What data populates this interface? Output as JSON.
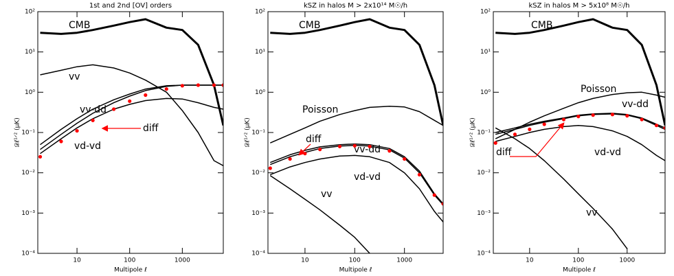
{
  "chart_data": [
    {
      "type": "line",
      "title": "1st and 2nd [OV] orders",
      "xlabel": "Multipole ℓ",
      "ylabel": "𝒟ℓ¹ᐟ² (μK)",
      "xscale": "log",
      "yscale": "log",
      "xlim": [
        1.8,
        6000
      ],
      "ylim": [
        0.0001,
        100
      ],
      "xticks": [
        10,
        100,
        1000
      ],
      "yticks": [
        {
          "value": 0.0001,
          "label": "10⁻⁴"
        },
        {
          "value": 0.001,
          "label": "10⁻³"
        },
        {
          "value": 0.01,
          "label": "10⁻²"
        },
        {
          "value": 0.1,
          "label": "10⁻¹"
        },
        {
          "value": 1,
          "label": "10⁰"
        },
        {
          "value": 10,
          "label": "10¹"
        },
        {
          "value": 100,
          "label": "10²"
        }
      ],
      "x": [
        2,
        5,
        10,
        20,
        50,
        100,
        200,
        500,
        1000,
        2000,
        4000,
        6000
      ],
      "series": [
        {
          "name": "CMB",
          "color": "#000000",
          "width": 3,
          "values": [
            30,
            28,
            30,
            35,
            45,
            55,
            65,
            40,
            35,
            15,
            1.5,
            0.15
          ]
        },
        {
          "name": "vv",
          "color": "#000000",
          "width": 1.5,
          "values": [
            2.7,
            3.5,
            4.3,
            4.8,
            4,
            3,
            2,
            1,
            0.35,
            0.1,
            0.02,
            0.015
          ]
        },
        {
          "color": "#000000",
          "width": 1.5,
          "values": [
            0.05,
            0.12,
            0.22,
            0.38,
            0.65,
            0.9,
            1.2,
            1.45,
            1.5,
            1.5,
            1.5,
            1.5
          ]
        },
        {
          "name": "vv-dd",
          "color": "#000000",
          "width": 1.5,
          "values": [
            0.038,
            0.09,
            0.17,
            0.3,
            0.55,
            0.8,
            1.1,
            1.4,
            1.5,
            1.5,
            1.5,
            1.5
          ]
        },
        {
          "name": "vd-vd",
          "color": "#000000",
          "width": 1.5,
          "values": [
            0.03,
            0.07,
            0.13,
            0.22,
            0.38,
            0.5,
            0.62,
            0.7,
            0.68,
            0.55,
            0.42,
            0.38
          ]
        },
        {
          "name": "diff",
          "color": "#ff0000",
          "style": "dots",
          "values": [
            0.025,
            0.06,
            0.11,
            0.2,
            0.38,
            0.6,
            0.85,
            1.2,
            1.45,
            1.5,
            1.5,
            1.5
          ]
        }
      ]
    },
    {
      "type": "line",
      "title": "kSZ in halos M > 2x10¹⁴ M☉/h",
      "xlabel": "Multipole ℓ",
      "ylabel": "𝒟ℓ¹ᐟ² (μK)",
      "xscale": "log",
      "yscale": "log",
      "xlim": [
        1.8,
        6000
      ],
      "ylim": [
        0.0001,
        100
      ],
      "xticks": [
        10,
        100,
        1000
      ],
      "yticks": [
        {
          "value": 0.0001,
          "label": "10⁻⁴"
        },
        {
          "value": 0.001,
          "label": "10⁻³"
        },
        {
          "value": 0.01,
          "label": "10⁻²"
        },
        {
          "value": 0.1,
          "label": "10⁻¹"
        },
        {
          "value": 1,
          "label": "10⁰"
        },
        {
          "value": 10,
          "label": "10¹"
        },
        {
          "value": 100,
          "label": "10²"
        }
      ],
      "x": [
        2,
        5,
        10,
        20,
        50,
        100,
        200,
        500,
        1000,
        2000,
        4000,
        6000
      ],
      "series": [
        {
          "name": "CMB",
          "color": "#000000",
          "width": 3,
          "values": [
            30,
            28,
            30,
            35,
            45,
            55,
            65,
            40,
            35,
            15,
            1.5,
            0.15
          ]
        },
        {
          "name": "Poisson",
          "color": "#000000",
          "width": 1.5,
          "values": [
            0.055,
            0.09,
            0.13,
            0.19,
            0.28,
            0.35,
            0.42,
            0.45,
            0.43,
            0.33,
            0.2,
            0.15
          ]
        },
        {
          "name": "vv-dd",
          "color": "#000000",
          "width": 1.5,
          "values": [
            0.018,
            0.028,
            0.036,
            0.044,
            0.05,
            0.052,
            0.05,
            0.04,
            0.025,
            0.011,
            0.003,
            0.0017
          ]
        },
        {
          "color": "#000000",
          "width": 1.5,
          "values": [
            0.016,
            0.025,
            0.032,
            0.04,
            0.046,
            0.048,
            0.046,
            0.037,
            0.023,
            0.01,
            0.0028,
            0.0016
          ]
        },
        {
          "name": "vd-vd",
          "color": "#000000",
          "width": 1.5,
          "values": [
            0.009,
            0.014,
            0.018,
            0.022,
            0.026,
            0.027,
            0.025,
            0.018,
            0.01,
            0.004,
            0.0011,
            0.0006
          ]
        },
        {
          "name": "vv",
          "color": "#000000",
          "width": 1.5,
          "values": [
            0.0085,
            0.004,
            0.0022,
            0.0012,
            0.0005,
            0.00025,
            0.0001,
            null,
            null,
            null,
            null,
            null
          ]
        },
        {
          "name": "diff",
          "color": "#ff0000",
          "style": "dots",
          "values": [
            0.013,
            0.022,
            0.03,
            0.038,
            0.045,
            0.047,
            0.045,
            0.035,
            0.022,
            0.009,
            0.0028,
            0.0017
          ]
        }
      ]
    },
    {
      "type": "line",
      "title": "kSZ in halos M > 5x10⁸ M☉/h",
      "xlabel": "Multipole ℓ",
      "ylabel": "𝒟ℓ¹ᐟ² (μK)",
      "xscale": "log",
      "yscale": "log",
      "xlim": [
        1.8,
        6000
      ],
      "ylim": [
        0.0001,
        100
      ],
      "xticks": [
        10,
        100,
        1000
      ],
      "yticks": [
        {
          "value": 0.0001,
          "label": "10⁻⁴"
        },
        {
          "value": 0.001,
          "label": "10⁻³"
        },
        {
          "value": 0.01,
          "label": "10⁻²"
        },
        {
          "value": 0.1,
          "label": "10⁻¹"
        },
        {
          "value": 1,
          "label": "10⁰"
        },
        {
          "value": 10,
          "label": "10¹"
        },
        {
          "value": 100,
          "label": "10²"
        }
      ],
      "x": [
        2,
        5,
        10,
        20,
        50,
        100,
        200,
        500,
        1000,
        2000,
        4000,
        6000
      ],
      "series": [
        {
          "name": "CMB",
          "color": "#000000",
          "width": 3,
          "values": [
            30,
            28,
            30,
            35,
            45,
            55,
            65,
            40,
            35,
            15,
            1.5,
            0.15
          ]
        },
        {
          "name": "Poisson",
          "color": "#000000",
          "width": 1.5,
          "values": [
            0.07,
            0.12,
            0.18,
            0.26,
            0.4,
            0.55,
            0.7,
            0.88,
            0.97,
            1.0,
            0.85,
            0.75
          ]
        },
        {
          "name": "vv-dd",
          "color": "#000000",
          "width": 1.5,
          "values": [
            0.1,
            0.13,
            0.16,
            0.19,
            0.23,
            0.27,
            0.29,
            0.3,
            0.28,
            0.23,
            0.16,
            0.13
          ]
        },
        {
          "color": "#000000",
          "width": 1.5,
          "values": [
            0.09,
            0.12,
            0.15,
            0.18,
            0.22,
            0.26,
            0.28,
            0.29,
            0.27,
            0.22,
            0.15,
            0.12
          ]
        },
        {
          "name": "vd-vd",
          "color": "#000000",
          "width": 1.5,
          "values": [
            0.06,
            0.08,
            0.1,
            0.12,
            0.14,
            0.15,
            0.14,
            0.11,
            0.08,
            0.05,
            0.027,
            0.02
          ]
        },
        {
          "name": "vv",
          "color": "#000000",
          "width": 1.5,
          "values": [
            0.13,
            0.07,
            0.04,
            0.02,
            0.007,
            0.003,
            0.0013,
            0.0004,
            0.00013,
            null,
            null,
            null
          ]
        },
        {
          "name": "diff",
          "color": "#ff0000",
          "style": "dots",
          "values": [
            0.055,
            0.09,
            0.12,
            0.16,
            0.21,
            0.25,
            0.27,
            0.28,
            0.26,
            0.21,
            0.15,
            0.13
          ]
        }
      ]
    }
  ]
}
